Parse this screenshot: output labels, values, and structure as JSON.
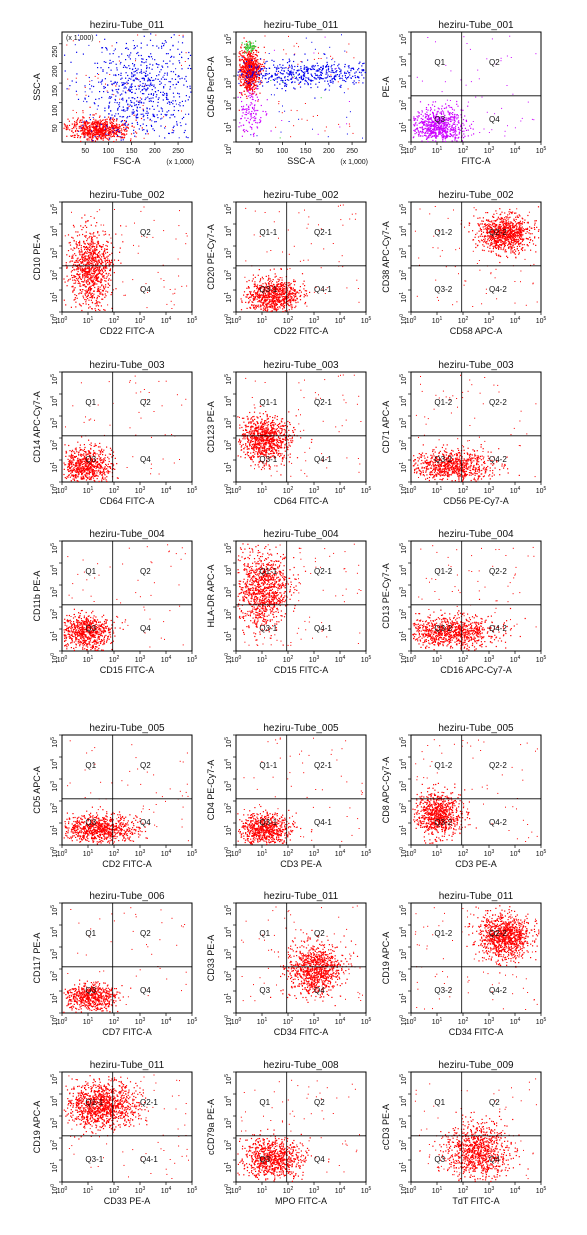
{
  "colors": {
    "events": "#ff0000",
    "blue_events": "#0000ee",
    "purple_events": "#cc00ff",
    "green_events": "#33cc33",
    "gate_line": "#000000"
  },
  "scale_suffix": "(x 1,000)",
  "log_ticks": [
    "10",
    "10",
    "10",
    "10",
    "10",
    "10"
  ],
  "log_exponents": [
    "0",
    "1",
    "2",
    "3",
    "4",
    "5"
  ],
  "lin_ticks_x": [
    "50",
    "100",
    "150",
    "200",
    "250"
  ],
  "lin_ticks_y": [
    "50",
    "100",
    "150",
    "200",
    "250"
  ],
  "chart_data": [
    {
      "type": "scatter",
      "title": "heziru-Tube_011",
      "xlabel": "FSC-A",
      "ylabel": "SSC-A",
      "scale": "linear",
      "quadrants": []
    },
    {
      "type": "scatter",
      "title": "heziru-Tube_011",
      "xlabel": "SSC-A",
      "ylabel": "CD45 PerCP-A",
      "scale": "linear-x-log-y",
      "quadrants": []
    },
    {
      "type": "scatter",
      "title": "heziru-Tube_001",
      "xlabel": "FITC-A",
      "ylabel": "PE-A",
      "scale": "log",
      "quadrants": [
        "Q1",
        "Q2",
        "Q3",
        "Q4"
      ]
    },
    {
      "type": "scatter",
      "title": "heziru-Tube_002",
      "xlabel": "CD22 FITC-A",
      "ylabel": "CD10 PE-A",
      "scale": "log",
      "quadrants": [
        "",
        "Q2",
        "",
        "Q4"
      ]
    },
    {
      "type": "scatter",
      "title": "heziru-Tube_002",
      "xlabel": "CD22 FITC-A",
      "ylabel": "CD20 PE-Cy7-A",
      "scale": "log",
      "quadrants": [
        "Q1-1",
        "Q2-1",
        "Q3-1",
        "Q4-1"
      ]
    },
    {
      "type": "scatter",
      "title": "heziru-Tube_002",
      "xlabel": "CD58 APC-A",
      "ylabel": "CD38 APC-Cy7-A",
      "scale": "log",
      "quadrants": [
        "Q1-2",
        "Q2-2",
        "Q3-2",
        "Q4-2"
      ]
    },
    {
      "type": "scatter",
      "title": "heziru-Tube_003",
      "xlabel": "CD64 FITC-A",
      "ylabel": "CD14 APC-Cy7-A",
      "scale": "log",
      "quadrants": [
        "Q1",
        "Q2",
        "Q3",
        "Q4"
      ]
    },
    {
      "type": "scatter",
      "title": "heziru-Tube_003",
      "xlabel": "CD64 FITC-A",
      "ylabel": "CD123 PE-A",
      "scale": "log",
      "quadrants": [
        "Q1-1",
        "Q2-1",
        "Q3-1",
        "Q4-1"
      ]
    },
    {
      "type": "scatter",
      "title": "heziru-Tube_003",
      "xlabel": "CD56 PE-Cy7-A",
      "ylabel": "CD71 APC-A",
      "scale": "log",
      "quadrants": [
        "Q1-2",
        "Q2-2",
        "Q3-2",
        "Q4-2"
      ]
    },
    {
      "type": "scatter",
      "title": "heziru-Tube_004",
      "xlabel": "CD15 FITC-A",
      "ylabel": "CD11b PE-A",
      "scale": "log",
      "quadrants": [
        "Q1",
        "Q2",
        "Q3",
        "Q4"
      ]
    },
    {
      "type": "scatter",
      "title": "heziru-Tube_004",
      "xlabel": "CD15 FITC-A",
      "ylabel": "HLA-DR APC-A",
      "scale": "log",
      "quadrants": [
        "Q1-1",
        "Q2-1",
        "Q3-1",
        "Q4-1"
      ]
    },
    {
      "type": "scatter",
      "title": "heziru-Tube_004",
      "xlabel": "CD16 APC-Cy7-A",
      "ylabel": "CD13 PE-Cy7-A",
      "scale": "log",
      "quadrants": [
        "Q1-2",
        "Q2-2",
        "Q3-2",
        "Q4-2"
      ]
    },
    {
      "type": "scatter",
      "title": "heziru-Tube_005",
      "xlabel": "CD2 FITC-A",
      "ylabel": "CD5 APC-A",
      "scale": "log",
      "quadrants": [
        "Q1",
        "Q2",
        "Q3",
        "Q4"
      ]
    },
    {
      "type": "scatter",
      "title": "heziru-Tube_005",
      "xlabel": "CD3 PE-A",
      "ylabel": "CD4 PE-Cy7-A",
      "scale": "log",
      "quadrants": [
        "Q1-1",
        "Q2-1",
        "Q3-1",
        "Q4-1"
      ]
    },
    {
      "type": "scatter",
      "title": "heziru-Tube_005",
      "xlabel": "CD3 PE-A",
      "ylabel": "CD8 APC-Cy7-A",
      "scale": "log",
      "quadrants": [
        "Q1-2",
        "Q2-2",
        "Q3-2",
        "Q4-2"
      ]
    },
    {
      "type": "scatter",
      "title": "heziru-Tube_006",
      "xlabel": "CD7 FITC-A",
      "ylabel": "CD117 PE-A",
      "scale": "log",
      "quadrants": [
        "Q1",
        "Q2",
        "Q3",
        "Q4"
      ]
    },
    {
      "type": "scatter",
      "title": "heziru-Tube_011",
      "xlabel": "CD34 FITC-A",
      "ylabel": "CD33 PE-A",
      "scale": "log",
      "quadrants": [
        "Q1",
        "Q2",
        "Q3",
        "Q4"
      ]
    },
    {
      "type": "scatter",
      "title": "heziru-Tube_011",
      "xlabel": "CD34 FITC-A",
      "ylabel": "CD19 APC-A",
      "scale": "log",
      "quadrants": [
        "Q1-2",
        "Q2-2",
        "Q3-2",
        "Q4-2"
      ]
    },
    {
      "type": "scatter",
      "title": "heziru-Tube_011",
      "xlabel": "CD33 PE-A",
      "ylabel": "CD19 APC-A",
      "scale": "log",
      "quadrants": [
        "Q1-1",
        "Q2-1",
        "Q3-1",
        "Q4-1"
      ]
    },
    {
      "type": "scatter",
      "title": "heziru-Tube_008",
      "xlabel": "MPO FITC-A",
      "ylabel": "cCD79a PE-A",
      "scale": "log",
      "quadrants": [
        "Q1",
        "Q2",
        "Q3",
        "Q4"
      ]
    },
    {
      "type": "scatter",
      "title": "heziru-Tube_009",
      "xlabel": "TdT FITC-A",
      "ylabel": "cCD3 PE-A",
      "scale": "log",
      "quadrants": [
        "Q1",
        "Q2",
        "Q3",
        "Q4"
      ]
    }
  ]
}
